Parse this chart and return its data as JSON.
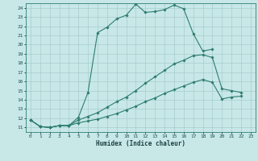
{
  "title": "",
  "xlabel": "Humidex (Indice chaleur)",
  "bg_color": "#c8e8e8",
  "line_color": "#2e7d6e",
  "grid_color": "#a8cccc",
  "xlim": [
    -0.5,
    23.5
  ],
  "ylim": [
    10.5,
    24.5
  ],
  "xticks": [
    0,
    1,
    2,
    3,
    4,
    5,
    6,
    7,
    8,
    9,
    10,
    11,
    12,
    13,
    14,
    15,
    16,
    17,
    18,
    19,
    20,
    21,
    22,
    23
  ],
  "yticks": [
    11,
    12,
    13,
    14,
    15,
    16,
    17,
    18,
    19,
    20,
    21,
    22,
    23,
    24
  ],
  "line1_x": [
    0,
    1,
    2,
    3,
    4,
    5,
    6,
    7,
    8,
    9,
    10,
    11,
    12,
    13,
    14,
    15,
    16,
    17,
    18,
    19
  ],
  "line1_y": [
    11.8,
    11.1,
    11.0,
    11.2,
    11.2,
    12.1,
    14.8,
    21.3,
    21.9,
    22.8,
    23.2,
    24.4,
    23.5,
    23.6,
    23.8,
    24.3,
    23.9,
    21.2,
    19.3,
    19.5
  ],
  "line2_x": [
    0,
    1,
    2,
    3,
    4,
    5,
    6,
    7,
    8,
    9,
    10,
    11,
    12,
    13,
    14,
    15,
    16,
    17,
    18,
    19,
    20,
    21,
    22,
    23
  ],
  "line2_y": [
    11.8,
    11.1,
    11.0,
    11.2,
    11.2,
    11.8,
    12.2,
    12.6,
    13.2,
    13.8,
    14.3,
    15.0,
    15.8,
    16.5,
    17.2,
    17.9,
    18.3,
    18.8,
    18.9,
    18.6,
    15.2,
    15.0,
    14.8,
    null
  ],
  "line3_x": [
    0,
    1,
    2,
    3,
    4,
    5,
    6,
    7,
    8,
    9,
    10,
    11,
    12,
    13,
    14,
    15,
    16,
    17,
    18,
    19,
    20,
    21,
    22,
    23
  ],
  "line3_y": [
    11.8,
    11.1,
    11.0,
    11.2,
    11.2,
    11.5,
    11.7,
    11.9,
    12.2,
    12.5,
    12.9,
    13.3,
    13.8,
    14.2,
    14.7,
    15.1,
    15.5,
    15.9,
    16.2,
    15.9,
    14.1,
    14.3,
    14.4,
    null
  ]
}
